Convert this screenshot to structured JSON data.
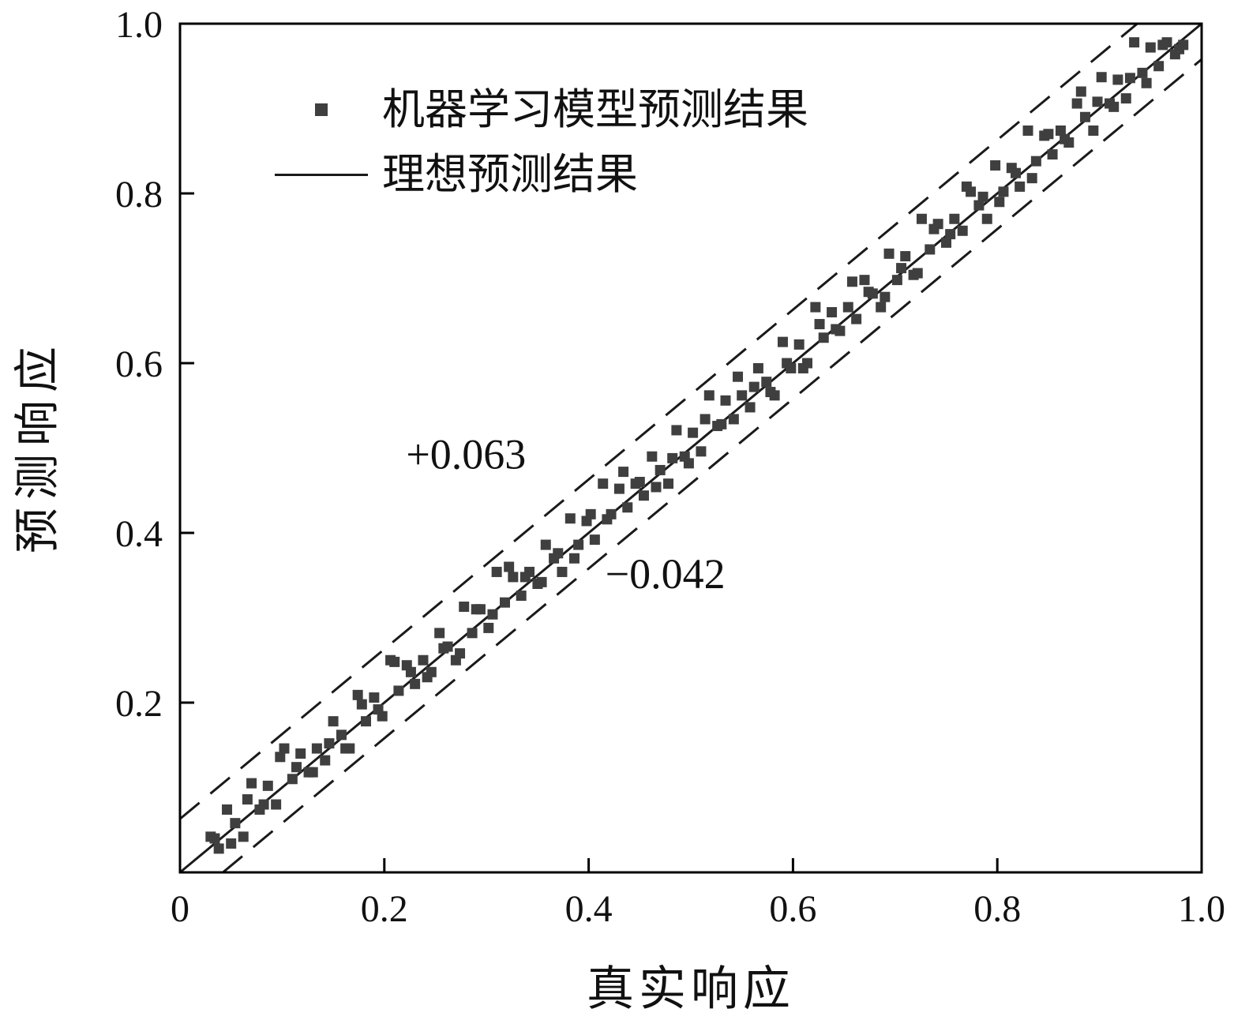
{
  "chart_data": {
    "type": "scatter",
    "xlabel": "真实响应",
    "ylabel": "预测响应",
    "xlim": [
      0,
      1.0
    ],
    "ylim": [
      0,
      1.0
    ],
    "x_ticks": [
      0,
      0.2,
      0.4,
      0.6,
      0.8,
      1.0
    ],
    "x_tick_labels": [
      "0",
      "0.2",
      "0.4",
      "0.6",
      "0.8",
      "1.0"
    ],
    "y_ticks": [
      0.2,
      0.4,
      0.6,
      0.8,
      1.0
    ],
    "y_tick_labels": [
      "0.2",
      "0.4",
      "0.6",
      "0.8",
      "1.0"
    ],
    "grid": false,
    "legend_position": "upper-left-inside",
    "legend": [
      {
        "marker": "square",
        "label": "机器学习模型预测结果"
      },
      {
        "marker": "line",
        "label": "理想预测结果"
      }
    ],
    "ideal_line": {
      "from": [
        0,
        0
      ],
      "to": [
        1,
        1
      ]
    },
    "bands": [
      {
        "offset": 0.063,
        "style": "dashed"
      },
      {
        "offset": -0.042,
        "style": "dashed"
      }
    ],
    "annotations": [
      {
        "text": "+0.063",
        "x": 0.28,
        "y": 0.476
      },
      {
        "text": "−0.042",
        "x": 0.475,
        "y": 0.335
      }
    ],
    "marker_color": "#3f3f3f",
    "line_color": "#1a1a1a",
    "frame_color": "#000000",
    "points": [
      [
        0.03,
        0.042
      ],
      [
        0.038,
        0.028
      ],
      [
        0.046,
        0.074
      ],
      [
        0.054,
        0.058
      ],
      [
        0.062,
        0.042
      ],
      [
        0.07,
        0.105
      ],
      [
        0.078,
        0.074
      ],
      [
        0.086,
        0.102
      ],
      [
        0.094,
        0.08
      ],
      [
        0.102,
        0.146
      ],
      [
        0.11,
        0.11
      ],
      [
        0.118,
        0.14
      ],
      [
        0.126,
        0.118
      ],
      [
        0.134,
        0.146
      ],
      [
        0.142,
        0.132
      ],
      [
        0.15,
        0.178
      ],
      [
        0.158,
        0.162
      ],
      [
        0.166,
        0.146
      ],
      [
        0.174,
        0.209
      ],
      [
        0.182,
        0.178
      ],
      [
        0.19,
        0.206
      ],
      [
        0.198,
        0.184
      ],
      [
        0.206,
        0.25
      ],
      [
        0.214,
        0.214
      ],
      [
        0.222,
        0.244
      ],
      [
        0.23,
        0.222
      ],
      [
        0.238,
        0.25
      ],
      [
        0.246,
        0.236
      ],
      [
        0.254,
        0.282
      ],
      [
        0.262,
        0.266
      ],
      [
        0.27,
        0.25
      ],
      [
        0.278,
        0.313
      ],
      [
        0.286,
        0.282
      ],
      [
        0.294,
        0.31
      ],
      [
        0.302,
        0.288
      ],
      [
        0.31,
        0.354
      ],
      [
        0.318,
        0.318
      ],
      [
        0.326,
        0.348
      ],
      [
        0.334,
        0.326
      ],
      [
        0.342,
        0.354
      ],
      [
        0.35,
        0.34
      ],
      [
        0.358,
        0.386
      ],
      [
        0.366,
        0.37
      ],
      [
        0.374,
        0.354
      ],
      [
        0.382,
        0.417
      ],
      [
        0.39,
        0.386
      ],
      [
        0.398,
        0.414
      ],
      [
        0.406,
        0.392
      ],
      [
        0.414,
        0.458
      ],
      [
        0.422,
        0.422
      ],
      [
        0.43,
        0.452
      ],
      [
        0.438,
        0.43
      ],
      [
        0.446,
        0.458
      ],
      [
        0.454,
        0.444
      ],
      [
        0.462,
        0.49
      ],
      [
        0.47,
        0.474
      ],
      [
        0.478,
        0.458
      ],
      [
        0.486,
        0.521
      ],
      [
        0.494,
        0.49
      ],
      [
        0.502,
        0.518
      ],
      [
        0.51,
        0.496
      ],
      [
        0.518,
        0.562
      ],
      [
        0.526,
        0.526
      ],
      [
        0.534,
        0.556
      ],
      [
        0.542,
        0.534
      ],
      [
        0.55,
        0.562
      ],
      [
        0.558,
        0.548
      ],
      [
        0.566,
        0.594
      ],
      [
        0.574,
        0.578
      ],
      [
        0.582,
        0.562
      ],
      [
        0.59,
        0.625
      ],
      [
        0.598,
        0.594
      ],
      [
        0.606,
        0.622
      ],
      [
        0.614,
        0.6
      ],
      [
        0.622,
        0.666
      ],
      [
        0.63,
        0.63
      ],
      [
        0.638,
        0.66
      ],
      [
        0.646,
        0.638
      ],
      [
        0.654,
        0.666
      ],
      [
        0.662,
        0.652
      ],
      [
        0.67,
        0.698
      ],
      [
        0.678,
        0.682
      ],
      [
        0.686,
        0.666
      ],
      [
        0.694,
        0.729
      ],
      [
        0.702,
        0.698
      ],
      [
        0.71,
        0.726
      ],
      [
        0.718,
        0.704
      ],
      [
        0.726,
        0.77
      ],
      [
        0.734,
        0.734
      ],
      [
        0.742,
        0.764
      ],
      [
        0.75,
        0.742
      ],
      [
        0.758,
        0.77
      ],
      [
        0.766,
        0.756
      ],
      [
        0.774,
        0.802
      ],
      [
        0.782,
        0.786
      ],
      [
        0.79,
        0.77
      ],
      [
        0.798,
        0.833
      ],
      [
        0.806,
        0.802
      ],
      [
        0.814,
        0.83
      ],
      [
        0.822,
        0.808
      ],
      [
        0.83,
        0.874
      ],
      [
        0.838,
        0.838
      ],
      [
        0.846,
        0.868
      ],
      [
        0.854,
        0.846
      ],
      [
        0.862,
        0.874
      ],
      [
        0.87,
        0.86
      ],
      [
        0.878,
        0.906
      ],
      [
        0.886,
        0.89
      ],
      [
        0.894,
        0.874
      ],
      [
        0.902,
        0.937
      ],
      [
        0.91,
        0.906
      ],
      [
        0.918,
        0.934
      ],
      [
        0.926,
        0.912
      ],
      [
        0.934,
        0.978
      ],
      [
        0.942,
        0.942
      ],
      [
        0.95,
        0.972
      ],
      [
        0.958,
        0.95
      ],
      [
        0.966,
        0.978
      ],
      [
        0.974,
        0.964
      ],
      [
        0.982,
        0.975
      ],
      [
        0.034,
        0.04
      ],
      [
        0.05,
        0.034
      ],
      [
        0.066,
        0.086
      ],
      [
        0.082,
        0.08
      ],
      [
        0.098,
        0.136
      ],
      [
        0.114,
        0.124
      ],
      [
        0.13,
        0.118
      ],
      [
        0.146,
        0.152
      ],
      [
        0.162,
        0.146
      ],
      [
        0.178,
        0.198
      ],
      [
        0.194,
        0.192
      ],
      [
        0.21,
        0.248
      ],
      [
        0.226,
        0.236
      ],
      [
        0.242,
        0.23
      ],
      [
        0.258,
        0.264
      ],
      [
        0.274,
        0.258
      ],
      [
        0.29,
        0.31
      ],
      [
        0.306,
        0.304
      ],
      [
        0.322,
        0.36
      ],
      [
        0.338,
        0.348
      ],
      [
        0.354,
        0.342
      ],
      [
        0.37,
        0.376
      ],
      [
        0.386,
        0.37
      ],
      [
        0.402,
        0.422
      ],
      [
        0.418,
        0.416
      ],
      [
        0.434,
        0.472
      ],
      [
        0.45,
        0.46
      ],
      [
        0.466,
        0.454
      ],
      [
        0.482,
        0.488
      ],
      [
        0.498,
        0.482
      ],
      [
        0.514,
        0.534
      ],
      [
        0.53,
        0.528
      ],
      [
        0.546,
        0.584
      ],
      [
        0.562,
        0.572
      ],
      [
        0.578,
        0.566
      ],
      [
        0.594,
        0.6
      ],
      [
        0.61,
        0.594
      ],
      [
        0.626,
        0.646
      ],
      [
        0.642,
        0.64
      ],
      [
        0.658,
        0.696
      ],
      [
        0.674,
        0.684
      ],
      [
        0.69,
        0.678
      ],
      [
        0.706,
        0.712
      ],
      [
        0.722,
        0.706
      ],
      [
        0.738,
        0.758
      ],
      [
        0.754,
        0.752
      ],
      [
        0.77,
        0.808
      ],
      [
        0.786,
        0.796
      ],
      [
        0.802,
        0.79
      ],
      [
        0.818,
        0.824
      ],
      [
        0.834,
        0.818
      ],
      [
        0.85,
        0.87
      ],
      [
        0.866,
        0.864
      ],
      [
        0.882,
        0.92
      ],
      [
        0.898,
        0.908
      ],
      [
        0.914,
        0.902
      ],
      [
        0.93,
        0.936
      ],
      [
        0.946,
        0.93
      ],
      [
        0.962,
        0.975
      ],
      [
        0.978,
        0.97
      ]
    ]
  }
}
